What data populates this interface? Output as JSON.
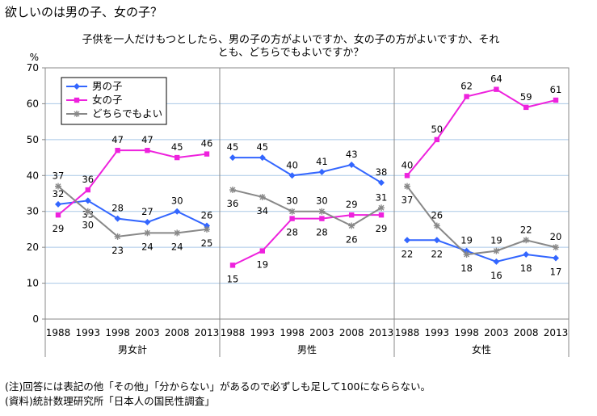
{
  "title": "欲しいのは男の子、女の子？",
  "subtitle_lines": [
    "子供を一人だけもつとしたら、男の子の方がよいですか、女の子の方がよいですか、それ",
    "とも、どちらでもよいですか？"
  ],
  "notes": [
    "(注)回答には表記の他「その他」「分からない」があるので必ずしも足して100になららない。",
    "(資料)統計数理研究所「日本人の国民性調査」"
  ],
  "chart_data": {
    "type": "line",
    "y_unit": "%",
    "ylim": [
      0,
      70
    ],
    "yticks": [
      0,
      10,
      20,
      30,
      40,
      50,
      60,
      70
    ],
    "grid": true,
    "legend_position": "top-left",
    "x": [
      "1988",
      "1993",
      "1998",
      "2003",
      "2008",
      "2013"
    ],
    "groups": [
      "男女計",
      "男性",
      "女性"
    ],
    "series": [
      {
        "name": "男の子",
        "color": "#3366ff",
        "marker": "diamond",
        "values": [
          [
            32,
            33,
            28,
            27,
            30,
            26
          ],
          [
            45,
            45,
            40,
            41,
            43,
            38
          ],
          [
            22,
            22,
            19,
            16,
            18,
            17
          ]
        ]
      },
      {
        "name": "女の子",
        "color": "#ee22dd",
        "marker": "square",
        "values": [
          [
            29,
            36,
            47,
            47,
            45,
            46
          ],
          [
            15,
            19,
            28,
            28,
            29,
            29
          ],
          [
            40,
            50,
            62,
            64,
            59,
            61
          ]
        ]
      },
      {
        "name": "どちらでもよい",
        "color": "#888888",
        "marker": "star",
        "values": [
          [
            37,
            30,
            23,
            24,
            24,
            25
          ],
          [
            36,
            34,
            30,
            30,
            26,
            31
          ],
          [
            37,
            26,
            18,
            19,
            22,
            20
          ]
        ]
      }
    ]
  }
}
